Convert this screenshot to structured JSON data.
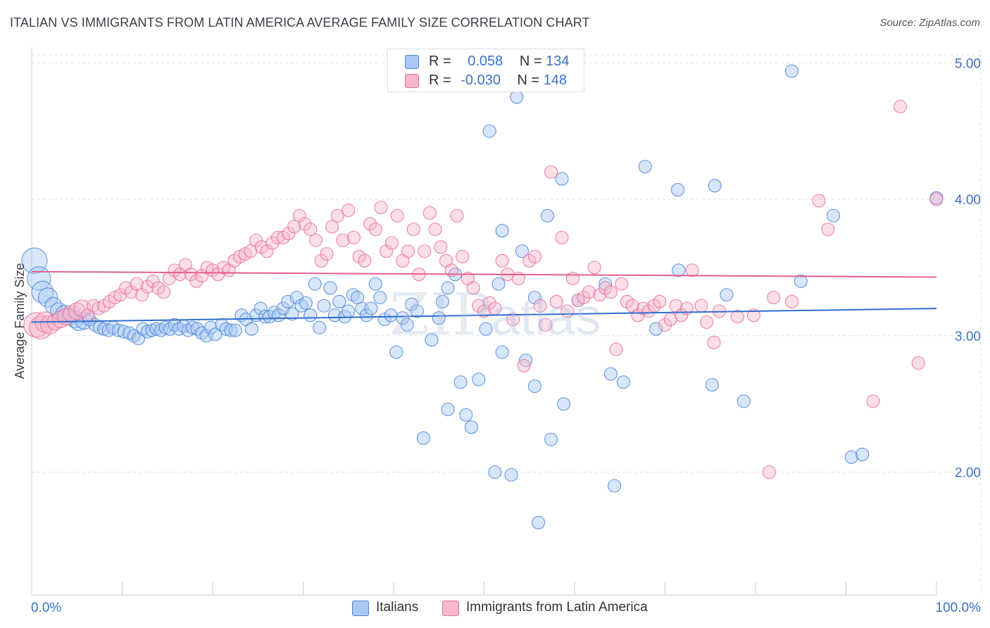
{
  "title": "ITALIAN VS IMMIGRANTS FROM LATIN AMERICA AVERAGE FAMILY SIZE CORRELATION CHART",
  "source": "Source: ZipAtlas.com",
  "watermark": {
    "zip": "ZIP",
    "atlas": "atlas"
  },
  "colors": {
    "italians": "#4a86d8",
    "immigrants": "#e86f98",
    "italians_fill": "#a9c8f3",
    "immigrants_fill": "#f6b8cc",
    "tick_text": "#3a72c8"
  },
  "legend": {
    "italians": {
      "r_label": "R =",
      "r_value": "0.058",
      "n_label": "N =",
      "n_value": "134"
    },
    "immigrants": {
      "r_label": "R =",
      "r_value": "-0.030",
      "n_label": "N =",
      "n_value": "148"
    }
  },
  "bottom_legend": {
    "italians": "Italians",
    "immigrants": "Immigrants from Latin America"
  },
  "chart_data": {
    "type": "scatter",
    "title": "ITALIAN VS IMMIGRANTS FROM LATIN AMERICA AVERAGE FAMILY SIZE CORRELATION CHART",
    "xlabel": "",
    "ylabel": "Average Family Size",
    "xlim": [
      0,
      100
    ],
    "ylim": [
      1.1,
      5.1
    ],
    "x_tick_labels": [
      "0.0%",
      "100.0%"
    ],
    "y_ticks": [
      2.0,
      3.0,
      4.0,
      5.0
    ],
    "y_tick_labels": [
      "2.00",
      "3.00",
      "4.00",
      "5.00"
    ],
    "grid": true,
    "legend_position": "top-center",
    "series": [
      {
        "name": "Italians",
        "trend": {
          "x": [
            0,
            100
          ],
          "y": [
            3.1,
            3.2
          ]
        },
        "points": [
          [
            0.3,
            3.55
          ],
          [
            0.8,
            3.42
          ],
          [
            1.2,
            3.32
          ],
          [
            1.8,
            3.28
          ],
          [
            2.4,
            3.22
          ],
          [
            3.0,
            3.18
          ],
          [
            3.6,
            3.16
          ],
          [
            4.2,
            3.14
          ],
          [
            4.8,
            3.12
          ],
          [
            5.2,
            3.1
          ],
          [
            5.8,
            3.11
          ],
          [
            6.4,
            3.12
          ],
          [
            7.0,
            3.08
          ],
          [
            7.5,
            3.06
          ],
          [
            8.0,
            3.05
          ],
          [
            8.5,
            3.04
          ],
          [
            9.0,
            3.06
          ],
          [
            9.6,
            3.04
          ],
          [
            10.2,
            3.03
          ],
          [
            10.8,
            3.02
          ],
          [
            11.3,
            3.0
          ],
          [
            11.8,
            2.98
          ],
          [
            12.3,
            3.05
          ],
          [
            12.8,
            3.03
          ],
          [
            13.3,
            3.04
          ],
          [
            13.8,
            3.05
          ],
          [
            14.3,
            3.04
          ],
          [
            14.8,
            3.06
          ],
          [
            15.3,
            3.05
          ],
          [
            15.8,
            3.08
          ],
          [
            16.3,
            3.05
          ],
          [
            16.8,
            3.07
          ],
          [
            17.3,
            3.04
          ],
          [
            17.8,
            3.06
          ],
          [
            18.3,
            3.05
          ],
          [
            18.8,
            3.02
          ],
          [
            19.3,
            3.0
          ],
          [
            19.8,
            3.06
          ],
          [
            20.3,
            3.01
          ],
          [
            21.0,
            3.08
          ],
          [
            21.5,
            3.05
          ],
          [
            22.0,
            3.04
          ],
          [
            22.5,
            3.04
          ],
          [
            23.2,
            3.15
          ],
          [
            23.7,
            3.12
          ],
          [
            24.3,
            3.05
          ],
          [
            24.8,
            3.15
          ],
          [
            25.3,
            3.2
          ],
          [
            25.8,
            3.14
          ],
          [
            26.3,
            3.14
          ],
          [
            26.8,
            3.17
          ],
          [
            27.3,
            3.15
          ],
          [
            27.8,
            3.2
          ],
          [
            28.3,
            3.25
          ],
          [
            28.8,
            3.16
          ],
          [
            29.3,
            3.28
          ],
          [
            29.8,
            3.22
          ],
          [
            30.3,
            3.24
          ],
          [
            30.8,
            3.15
          ],
          [
            31.3,
            3.38
          ],
          [
            31.8,
            3.06
          ],
          [
            32.3,
            3.22
          ],
          [
            33.0,
            3.35
          ],
          [
            33.5,
            3.15
          ],
          [
            34.0,
            3.25
          ],
          [
            34.6,
            3.14
          ],
          [
            35.0,
            3.18
          ],
          [
            35.5,
            3.3
          ],
          [
            36.0,
            3.28
          ],
          [
            36.5,
            3.2
          ],
          [
            37.0,
            3.15
          ],
          [
            37.5,
            3.2
          ],
          [
            38.0,
            3.38
          ],
          [
            38.5,
            3.28
          ],
          [
            39.0,
            3.12
          ],
          [
            39.7,
            3.15
          ],
          [
            40.3,
            2.88
          ],
          [
            41.0,
            3.13
          ],
          [
            41.5,
            3.08
          ],
          [
            42.0,
            3.23
          ],
          [
            42.6,
            3.18
          ],
          [
            43.3,
            2.25
          ],
          [
            44.2,
            2.97
          ],
          [
            45.0,
            3.13
          ],
          [
            45.4,
            3.25
          ],
          [
            46.0,
            2.46
          ],
          [
            46.8,
            3.45
          ],
          [
            46.0,
            3.35
          ],
          [
            47.4,
            2.66
          ],
          [
            48.0,
            2.42
          ],
          [
            48.6,
            2.33
          ],
          [
            49.4,
            2.68
          ],
          [
            50.2,
            3.05
          ],
          [
            50.6,
            4.5
          ],
          [
            51.6,
            3.38
          ],
          [
            51.2,
            2.0
          ],
          [
            52.0,
            3.77
          ],
          [
            52.0,
            2.88
          ],
          [
            53.0,
            1.98
          ],
          [
            53.6,
            4.75
          ],
          [
            54.2,
            3.62
          ],
          [
            54.6,
            2.82
          ],
          [
            55.6,
            3.28
          ],
          [
            55.6,
            2.63
          ],
          [
            56.0,
            1.63
          ],
          [
            57.0,
            3.88
          ],
          [
            57.4,
            2.24
          ],
          [
            58.6,
            4.15
          ],
          [
            58.8,
            2.5
          ],
          [
            60.4,
            3.26
          ],
          [
            63.4,
            3.38
          ],
          [
            64.0,
            2.72
          ],
          [
            64.4,
            1.9
          ],
          [
            65.4,
            2.66
          ],
          [
            67.8,
            4.24
          ],
          [
            69.0,
            3.05
          ],
          [
            71.4,
            4.07
          ],
          [
            71.5,
            3.48
          ],
          [
            75.5,
            4.1
          ],
          [
            75.2,
            2.64
          ],
          [
            76.8,
            3.3
          ],
          [
            78.7,
            2.52
          ],
          [
            84.0,
            4.94
          ],
          [
            85.0,
            3.4
          ],
          [
            88.6,
            3.88
          ],
          [
            90.6,
            2.11
          ],
          [
            91.8,
            2.13
          ],
          [
            100.0,
            4.01
          ]
        ]
      },
      {
        "name": "Immigrants from Latin America",
        "trend": {
          "x": [
            0,
            100
          ],
          "y": [
            3.47,
            3.43
          ]
        },
        "points": [
          [
            0.5,
            3.08
          ],
          [
            1.0,
            3.06
          ],
          [
            1.5,
            3.1
          ],
          [
            2.0,
            3.08
          ],
          [
            2.6,
            3.1
          ],
          [
            3.2,
            3.12
          ],
          [
            3.8,
            3.14
          ],
          [
            4.4,
            3.16
          ],
          [
            5.0,
            3.18
          ],
          [
            5.6,
            3.2
          ],
          [
            6.2,
            3.15
          ],
          [
            6.8,
            3.22
          ],
          [
            7.4,
            3.2
          ],
          [
            8.0,
            3.22
          ],
          [
            8.6,
            3.25
          ],
          [
            9.2,
            3.28
          ],
          [
            9.8,
            3.3
          ],
          [
            10.4,
            3.35
          ],
          [
            11.0,
            3.32
          ],
          [
            11.6,
            3.38
          ],
          [
            12.2,
            3.3
          ],
          [
            12.8,
            3.36
          ],
          [
            13.4,
            3.4
          ],
          [
            14.0,
            3.35
          ],
          [
            14.6,
            3.32
          ],
          [
            15.2,
            3.42
          ],
          [
            15.8,
            3.48
          ],
          [
            16.4,
            3.45
          ],
          [
            17.0,
            3.52
          ],
          [
            17.6,
            3.45
          ],
          [
            18.2,
            3.4
          ],
          [
            18.8,
            3.44
          ],
          [
            19.4,
            3.5
          ],
          [
            20.0,
            3.48
          ],
          [
            20.6,
            3.45
          ],
          [
            21.2,
            3.5
          ],
          [
            21.8,
            3.48
          ],
          [
            22.4,
            3.55
          ],
          [
            23.0,
            3.58
          ],
          [
            23.6,
            3.6
          ],
          [
            24.2,
            3.62
          ],
          [
            24.8,
            3.7
          ],
          [
            25.4,
            3.65
          ],
          [
            26.0,
            3.62
          ],
          [
            26.6,
            3.68
          ],
          [
            27.2,
            3.72
          ],
          [
            27.8,
            3.72
          ],
          [
            28.4,
            3.75
          ],
          [
            29.0,
            3.8
          ],
          [
            29.6,
            3.88
          ],
          [
            30.2,
            3.82
          ],
          [
            30.8,
            3.78
          ],
          [
            31.4,
            3.7
          ],
          [
            32.0,
            3.55
          ],
          [
            32.6,
            3.6
          ],
          [
            33.2,
            3.8
          ],
          [
            33.8,
            3.88
          ],
          [
            34.4,
            3.7
          ],
          [
            35.0,
            3.92
          ],
          [
            35.6,
            3.72
          ],
          [
            36.2,
            3.58
          ],
          [
            36.8,
            3.55
          ],
          [
            37.4,
            3.82
          ],
          [
            38.0,
            3.78
          ],
          [
            38.6,
            3.94
          ],
          [
            39.2,
            3.62
          ],
          [
            39.8,
            3.68
          ],
          [
            40.4,
            3.88
          ],
          [
            41.0,
            3.55
          ],
          [
            41.6,
            3.62
          ],
          [
            42.2,
            3.78
          ],
          [
            42.8,
            3.45
          ],
          [
            43.4,
            3.62
          ],
          [
            44.0,
            3.9
          ],
          [
            44.6,
            3.78
          ],
          [
            45.2,
            3.65
          ],
          [
            45.8,
            3.55
          ],
          [
            46.4,
            3.48
          ],
          [
            47.0,
            3.88
          ],
          [
            47.6,
            3.58
          ],
          [
            48.2,
            3.42
          ],
          [
            48.8,
            3.35
          ],
          [
            49.4,
            3.22
          ],
          [
            50.0,
            3.18
          ],
          [
            50.6,
            3.24
          ],
          [
            51.2,
            3.2
          ],
          [
            52.0,
            3.55
          ],
          [
            52.6,
            3.45
          ],
          [
            53.2,
            3.12
          ],
          [
            53.8,
            3.42
          ],
          [
            54.4,
            2.78
          ],
          [
            55.0,
            3.55
          ],
          [
            55.6,
            3.58
          ],
          [
            56.2,
            3.22
          ],
          [
            56.8,
            3.08
          ],
          [
            57.4,
            4.2
          ],
          [
            58.0,
            3.25
          ],
          [
            58.6,
            3.72
          ],
          [
            59.2,
            3.18
          ],
          [
            59.8,
            3.42
          ],
          [
            60.4,
            3.26
          ],
          [
            61.0,
            3.28
          ],
          [
            61.6,
            3.32
          ],
          [
            62.2,
            3.5
          ],
          [
            62.8,
            3.3
          ],
          [
            63.4,
            3.35
          ],
          [
            64.0,
            3.32
          ],
          [
            64.6,
            2.9
          ],
          [
            65.2,
            3.38
          ],
          [
            65.8,
            3.25
          ],
          [
            66.4,
            3.22
          ],
          [
            67.0,
            3.15
          ],
          [
            67.6,
            3.2
          ],
          [
            68.2,
            3.18
          ],
          [
            68.8,
            3.22
          ],
          [
            69.4,
            3.25
          ],
          [
            70.0,
            3.08
          ],
          [
            70.6,
            3.12
          ],
          [
            71.2,
            3.22
          ],
          [
            71.8,
            3.15
          ],
          [
            72.4,
            3.2
          ],
          [
            73.0,
            3.48
          ],
          [
            74.0,
            3.22
          ],
          [
            74.6,
            3.1
          ],
          [
            75.4,
            2.95
          ],
          [
            76.0,
            3.18
          ],
          [
            78.0,
            3.14
          ],
          [
            79.8,
            3.15
          ],
          [
            82.0,
            3.28
          ],
          [
            84.0,
            3.25
          ],
          [
            88.0,
            3.78
          ],
          [
            93.0,
            2.52
          ],
          [
            96.0,
            4.68
          ],
          [
            98.0,
            2.8
          ],
          [
            100.0,
            4.0
          ],
          [
            81.5,
            2.0
          ],
          [
            87.0,
            3.99
          ]
        ]
      }
    ]
  }
}
